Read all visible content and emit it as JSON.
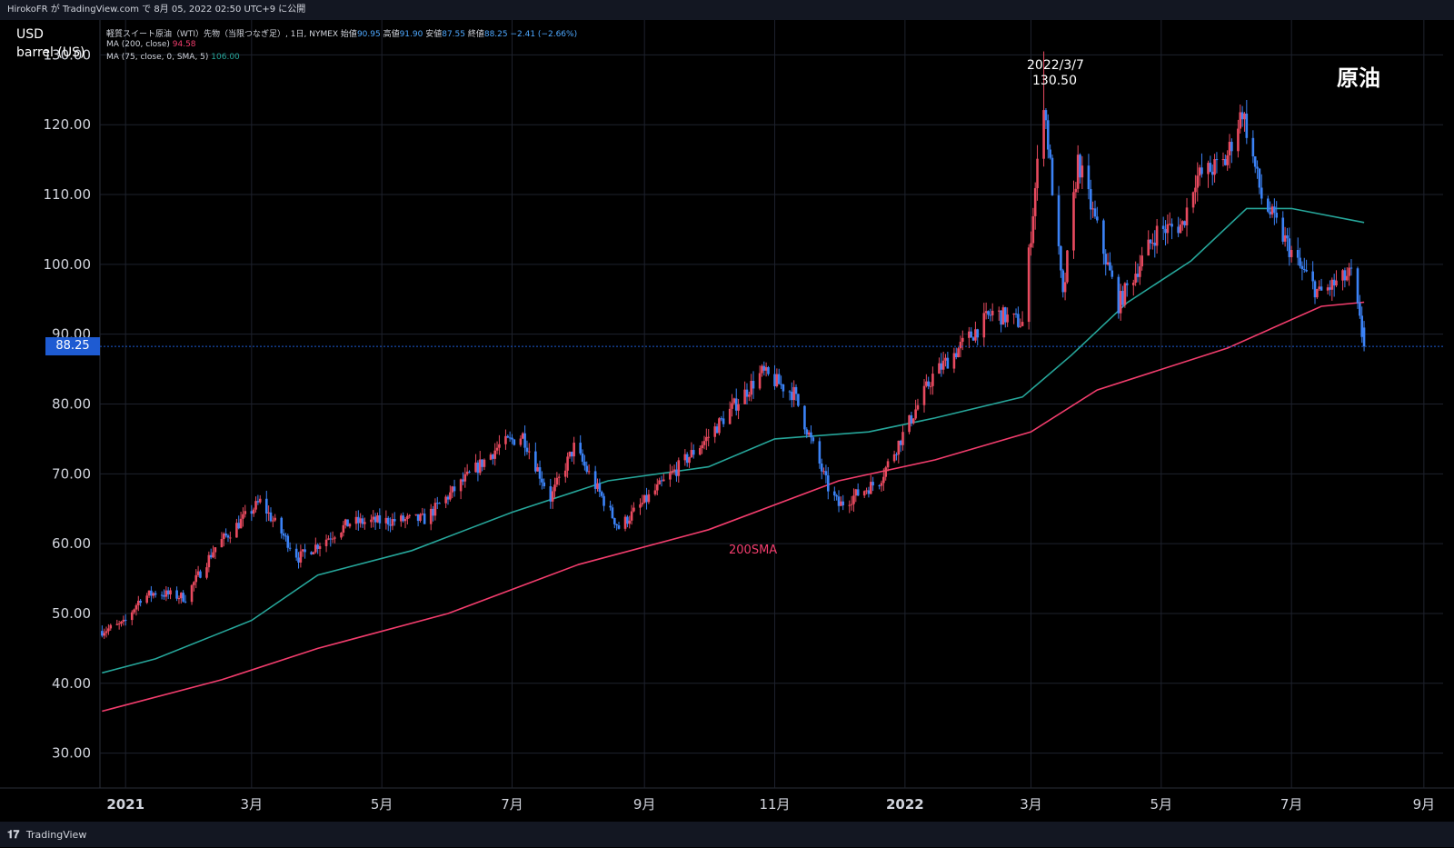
{
  "header": {
    "published": "HirokoFR が TradingView.com で 8月 05, 2022 02:50 UTC+9 に公開"
  },
  "legend": {
    "symbol_line_prefix": "軽質スイート原油（WTI）先物（当限つなぎ足）, 1日, NYMEX 始値",
    "open": "90.95",
    "high_label": " 高値",
    "high": "91.90",
    "low_label": " 安値",
    "low": "87.55",
    "close_label": " 終値",
    "close": "88.25",
    "change": " −2.41 (−2.66%)",
    "ma200_label": "MA (200, close)",
    "ma200_value": "94.58",
    "ma75_label": "MA (75, close, 0, SMA, 5)",
    "ma75_value": "106.00"
  },
  "unit": {
    "line1": "USD",
    "line2": "barrel (US)"
  },
  "title_label": "原油",
  "annotations": {
    "peak_date": "2022/3/7",
    "peak_value": "130.50",
    "sma_label": "200SMA"
  },
  "last_price_tag": "88.25",
  "footer": {
    "brand": "TradingView"
  },
  "colors": {
    "up": "#e84a5f",
    "down": "#3b82f6",
    "ma200": "#f23d6d",
    "ma75": "#26a69a",
    "grid": "#1e222d",
    "price_tag": "#1e5bd2"
  },
  "chart_data": {
    "type": "candlestick",
    "title": "原油",
    "ylabel": "USD barrel (US)",
    "ylim": [
      25,
      135
    ],
    "y_ticks": [
      "130.00",
      "120.00",
      "110.00",
      "100.00",
      "90.00",
      "80.00",
      "70.00",
      "60.00",
      "50.00",
      "40.00",
      "30.00"
    ],
    "x_ticks": [
      "2021",
      "3月",
      "5月",
      "7月",
      "9月",
      "11月",
      "2022",
      "3月",
      "5月",
      "7月",
      "9月"
    ],
    "x_tick_dates": [
      "2021-01-01",
      "2021-03-01",
      "2021-05-01",
      "2021-07-01",
      "2021-09-01",
      "2021-11-01",
      "2022-01-01",
      "2022-03-01",
      "2022-05-01",
      "2022-07-01",
      "2022-09-01"
    ],
    "xlim": [
      "2020-12-20",
      "2022-09-10"
    ],
    "price_path": [
      {
        "date": "2020-12-21",
        "price": 47.5
      },
      {
        "date": "2020-12-31",
        "price": 48.5
      },
      {
        "date": "2021-01-08",
        "price": 52.2
      },
      {
        "date": "2021-01-15",
        "price": 53.0
      },
      {
        "date": "2021-01-29",
        "price": 52.3
      },
      {
        "date": "2021-02-12",
        "price": 59.5
      },
      {
        "date": "2021-03-05",
        "price": 66.0
      },
      {
        "date": "2021-03-23",
        "price": 58.0
      },
      {
        "date": "2021-04-16",
        "price": 63.0
      },
      {
        "date": "2021-05-21",
        "price": 63.5
      },
      {
        "date": "2021-06-25",
        "price": 74.0
      },
      {
        "date": "2021-07-06",
        "price": 75.5
      },
      {
        "date": "2021-07-19",
        "price": 66.5
      },
      {
        "date": "2021-07-30",
        "price": 73.8
      },
      {
        "date": "2021-08-20",
        "price": 62.3
      },
      {
        "date": "2021-09-30",
        "price": 75.0
      },
      {
        "date": "2021-10-26",
        "price": 84.5
      },
      {
        "date": "2021-11-10",
        "price": 81.5
      },
      {
        "date": "2021-11-26",
        "price": 68.0
      },
      {
        "date": "2021-12-01",
        "price": 65.5
      },
      {
        "date": "2021-12-20",
        "price": 69.0
      },
      {
        "date": "2022-01-14",
        "price": 84.0
      },
      {
        "date": "2022-02-11",
        "price": 93.1
      },
      {
        "date": "2022-02-25",
        "price": 91.6
      },
      {
        "date": "2022-03-07",
        "price": 123.7
      },
      {
        "date": "2022-03-16",
        "price": 95.0
      },
      {
        "date": "2022-03-23",
        "price": 114.9
      },
      {
        "date": "2022-04-11",
        "price": 94.3
      },
      {
        "date": "2022-04-29",
        "price": 104.7
      },
      {
        "date": "2022-05-11",
        "price": 105.7
      },
      {
        "date": "2022-05-17",
        "price": 112.4
      },
      {
        "date": "2022-05-31",
        "price": 114.7
      },
      {
        "date": "2022-06-08",
        "price": 122.1
      },
      {
        "date": "2022-06-17",
        "price": 109.6
      },
      {
        "date": "2022-07-05",
        "price": 99.5
      },
      {
        "date": "2022-07-14",
        "price": 95.8
      },
      {
        "date": "2022-07-29",
        "price": 98.6
      },
      {
        "date": "2022-08-04",
        "price": 88.25
      }
    ],
    "ohlc_last": {
      "date": "2022-08-04",
      "open": 90.95,
      "high": 91.9,
      "low": 87.55,
      "close": 88.25
    },
    "peak": {
      "date": "2022-03-07",
      "high": 130.5
    },
    "series": [
      {
        "name": "MA (200, close)",
        "points": [
          {
            "date": "2020-12-21",
            "value": 36.0
          },
          {
            "date": "2021-02-15",
            "value": 40.5
          },
          {
            "date": "2021-04-01",
            "value": 45.0
          },
          {
            "date": "2021-06-01",
            "value": 50.0
          },
          {
            "date": "2021-08-01",
            "value": 57.0
          },
          {
            "date": "2021-10-01",
            "value": 62.0
          },
          {
            "date": "2021-12-01",
            "value": 69.0
          },
          {
            "date": "2022-01-15",
            "value": 72.0
          },
          {
            "date": "2022-03-01",
            "value": 76.0
          },
          {
            "date": "2022-04-01",
            "value": 82.0
          },
          {
            "date": "2022-06-01",
            "value": 88.0
          },
          {
            "date": "2022-07-15",
            "value": 94.0
          },
          {
            "date": "2022-08-04",
            "value": 94.58
          }
        ]
      },
      {
        "name": "MA (75, close, 0, SMA, 5)",
        "points": [
          {
            "date": "2020-12-21",
            "value": 41.5
          },
          {
            "date": "2021-01-15",
            "value": 43.5
          },
          {
            "date": "2021-03-01",
            "value": 49.0
          },
          {
            "date": "2021-04-01",
            "value": 55.5
          },
          {
            "date": "2021-05-15",
            "value": 59.0
          },
          {
            "date": "2021-07-01",
            "value": 64.5
          },
          {
            "date": "2021-08-15",
            "value": 69.0
          },
          {
            "date": "2021-10-01",
            "value": 71.0
          },
          {
            "date": "2021-11-01",
            "value": 75.0
          },
          {
            "date": "2021-12-15",
            "value": 76.0
          },
          {
            "date": "2022-01-15",
            "value": 78.0
          },
          {
            "date": "2022-02-25",
            "value": 81.0
          },
          {
            "date": "2022-03-20",
            "value": 87.0
          },
          {
            "date": "2022-04-15",
            "value": 94.5
          },
          {
            "date": "2022-05-15",
            "value": 100.5
          },
          {
            "date": "2022-06-10",
            "value": 108.0
          },
          {
            "date": "2022-07-01",
            "value": 108.0
          },
          {
            "date": "2022-08-04",
            "value": 106.0
          }
        ]
      }
    ],
    "grid": true,
    "legend_position": "top-left"
  }
}
